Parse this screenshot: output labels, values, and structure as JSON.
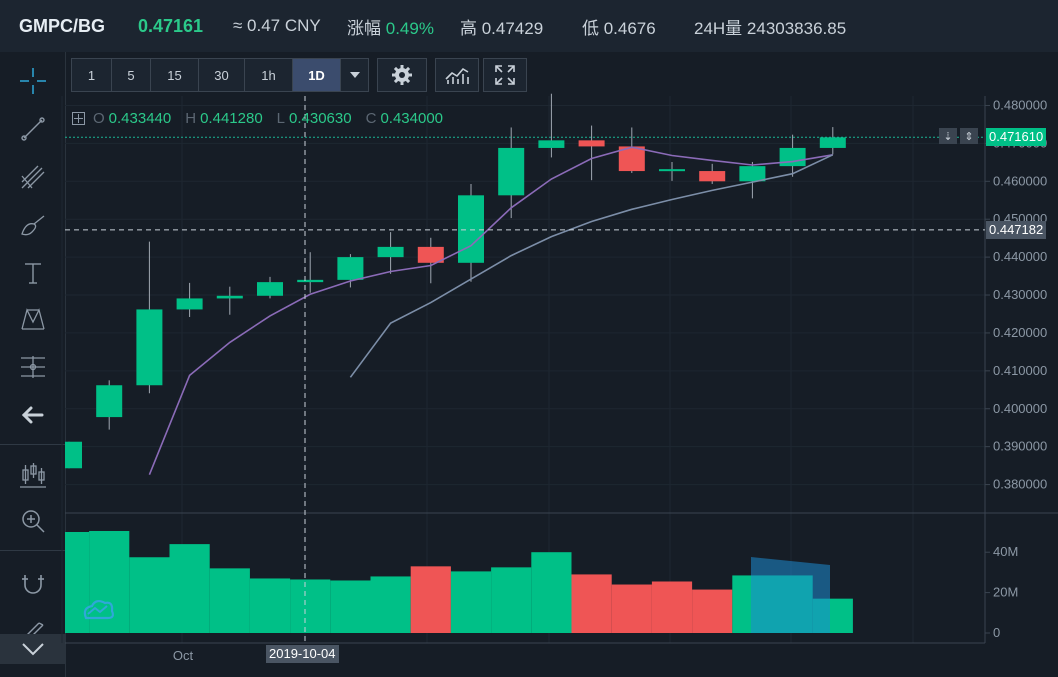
{
  "header": {
    "pair": "GMPC/BG",
    "price": "0.47161",
    "cny": "≈ 0.47 CNY",
    "change_label": "涨幅",
    "change_value": "0.49%",
    "high": "高 0.47429",
    "low": "低 0.4676",
    "volume": "24H量 24303836.85"
  },
  "toolbar": {
    "intervals": [
      "1",
      "5",
      "15",
      "30",
      "1h",
      "1D"
    ],
    "active_interval": "1D",
    "dropdown_icon": "caret-down-icon",
    "icons": [
      "gear-icon",
      "indicator-chart-icon",
      "fullscreen-icon"
    ]
  },
  "sidebar": {
    "tools": [
      "crosshair-icon",
      "trendline-icon",
      "fork-lines-icon",
      "brush-icon",
      "text-tool-icon",
      "pattern-icon",
      "measure-icon",
      "back-arrow-icon",
      "candles-icon",
      "zoom-in-icon",
      "magnet-icon",
      "pencil-lock-icon",
      "chevron-down-icon"
    ]
  },
  "ohlc": {
    "o_label": "O",
    "o": "0.433440",
    "h_label": "H",
    "h": "0.441280",
    "l_label": "L",
    "l": "0.430630",
    "c_label": "C",
    "c": "0.434000"
  },
  "price_tags": {
    "last": "0.471610",
    "crosshair": "0.447182"
  },
  "crosshair_date": "2019-10-04",
  "colors": {
    "up": "#00c087",
    "down": "#ef5555",
    "ma_fast": "#8b6bb8",
    "ma_slow": "#7c8ea8",
    "background": "#161d26",
    "last_price_line": "#1ab394"
  },
  "chart_data": {
    "type": "candlestick",
    "price_axis": {
      "ticks": [
        "0.480000",
        "0.470000",
        "0.460000",
        "0.450000",
        "0.440000",
        "0.430000",
        "0.420000",
        "0.410000",
        "0.400000",
        "0.390000",
        "0.380000"
      ],
      "ylim": [
        0.3725,
        0.4825
      ]
    },
    "time_axis": {
      "labels": [
        "Oct"
      ]
    },
    "candles": [
      {
        "o": 0.3843,
        "h": 0.3913,
        "l": 0.3843,
        "c": 0.3913
      },
      {
        "o": 0.3978,
        "h": 0.4075,
        "l": 0.3945,
        "c": 0.4062
      },
      {
        "o": 0.4062,
        "h": 0.4441,
        "l": 0.4041,
        "c": 0.4262
      },
      {
        "o": 0.4262,
        "h": 0.4332,
        "l": 0.4242,
        "c": 0.4291
      },
      {
        "o": 0.4291,
        "h": 0.4322,
        "l": 0.4248,
        "c": 0.4298
      },
      {
        "o": 0.4298,
        "h": 0.4348,
        "l": 0.4291,
        "c": 0.4334
      },
      {
        "o": 0.4334,
        "h": 0.4413,
        "l": 0.4306,
        "c": 0.434
      },
      {
        "o": 0.434,
        "h": 0.4408,
        "l": 0.432,
        "c": 0.44
      },
      {
        "o": 0.44,
        "h": 0.4466,
        "l": 0.4356,
        "c": 0.4427
      },
      {
        "o": 0.4427,
        "h": 0.4451,
        "l": 0.4331,
        "c": 0.4385
      },
      {
        "o": 0.4385,
        "h": 0.4593,
        "l": 0.4335,
        "c": 0.4563
      },
      {
        "o": 0.4563,
        "h": 0.4742,
        "l": 0.4503,
        "c": 0.4688
      },
      {
        "o": 0.4688,
        "h": 0.4831,
        "l": 0.4663,
        "c": 0.4708
      },
      {
        "o": 0.4708,
        "h": 0.4747,
        "l": 0.4603,
        "c": 0.4692
      },
      {
        "o": 0.4692,
        "h": 0.4742,
        "l": 0.4622,
        "c": 0.4627
      },
      {
        "o": 0.4632,
        "h": 0.4651,
        "l": 0.4601,
        "c": 0.4632
      },
      {
        "o": 0.4627,
        "h": 0.4646,
        "l": 0.4593,
        "c": 0.46
      },
      {
        "o": 0.46,
        "h": 0.4651,
        "l": 0.4555,
        "c": 0.464
      },
      {
        "o": 0.464,
        "h": 0.4723,
        "l": 0.4612,
        "c": 0.4688
      },
      {
        "o": 0.4688,
        "h": 0.4743,
        "l": 0.4671,
        "c": 0.4716
      }
    ],
    "ma_fast": [
      null,
      null,
      0.3826,
      0.4088,
      0.4175,
      0.4245,
      0.4302,
      0.4337,
      0.4362,
      0.4378,
      0.443,
      0.453,
      0.4606,
      0.466,
      0.469,
      0.4668,
      0.4655,
      0.4643,
      0.4652,
      0.467
    ],
    "ma_slow": [
      null,
      null,
      null,
      null,
      null,
      null,
      null,
      0.4083,
      0.4226,
      0.428,
      0.4342,
      0.4404,
      0.4454,
      0.4494,
      0.4526,
      0.4552,
      0.4576,
      0.4598,
      0.462,
      0.467
    ],
    "volume_axis": {
      "ticks": [
        "40M",
        "20M",
        "0"
      ],
      "ylim": [
        0,
        50
      ]
    },
    "volume": [
      {
        "v": 50.0,
        "up": true
      },
      {
        "v": 50.5,
        "up": true
      },
      {
        "v": 37.5,
        "up": true
      },
      {
        "v": 44.0,
        "up": true
      },
      {
        "v": 32.0,
        "up": true
      },
      {
        "v": 27.0,
        "up": true
      },
      {
        "v": 26.5,
        "up": true
      },
      {
        "v": 26.0,
        "up": true
      },
      {
        "v": 28.0,
        "up": true
      },
      {
        "v": 33.0,
        "up": false
      },
      {
        "v": 30.5,
        "up": true
      },
      {
        "v": 32.5,
        "up": true
      },
      {
        "v": 40.0,
        "up": true
      },
      {
        "v": 29.0,
        "up": false
      },
      {
        "v": 24.0,
        "up": false
      },
      {
        "v": 25.5,
        "up": false
      },
      {
        "v": 21.5,
        "up": false
      },
      {
        "v": 28.5,
        "up": true
      },
      {
        "v": 28.5,
        "up": true
      },
      {
        "v": 17.0,
        "up": true
      }
    ]
  }
}
